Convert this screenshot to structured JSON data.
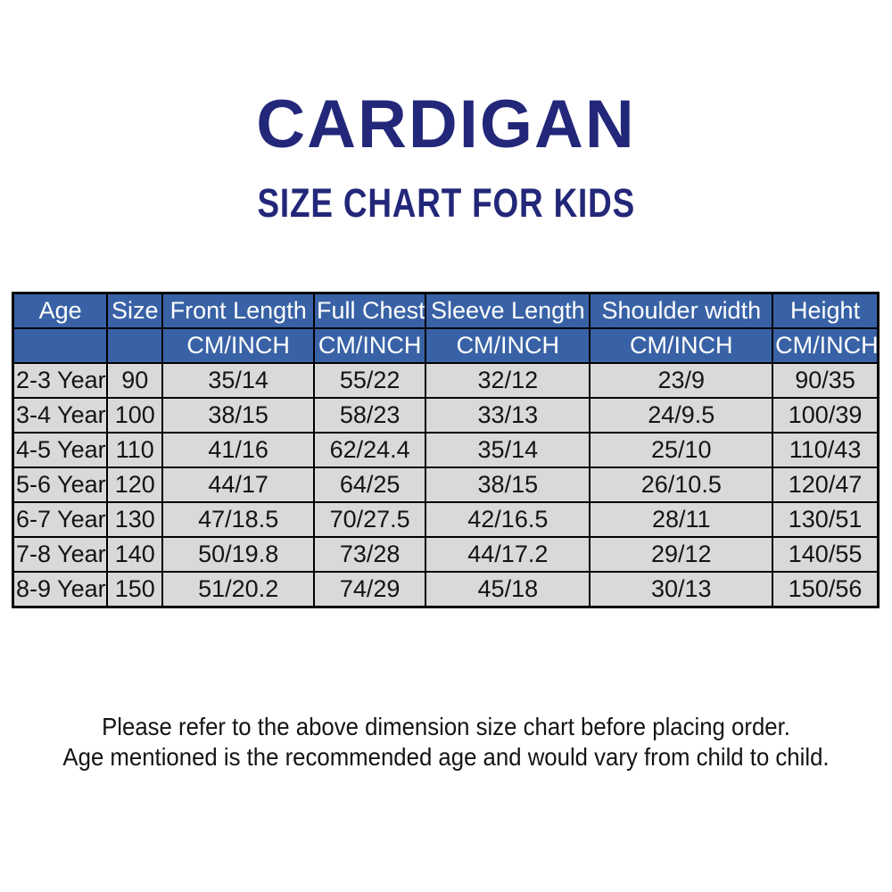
{
  "title": "CARDIGAN",
  "subtitle": "SIZE CHART FOR KIDS",
  "colors": {
    "title_navy": "#232779",
    "header_blue": "#3962A6",
    "row_gray": "#D9D9D9",
    "border_black": "#000000"
  },
  "table": {
    "columns": [
      "Age",
      "Size",
      "Front Length",
      "Full Chest",
      "Sleeve Length",
      "Shoulder width",
      "Height"
    ],
    "unit_row": [
      "",
      "",
      "CM/INCH",
      "CM/INCH",
      "CM/INCH",
      "CM/INCH",
      "CM/INCH"
    ],
    "rows": [
      [
        "2-3 Year",
        "90",
        "35/14",
        "55/22",
        "32/12",
        "23/9",
        "90/35"
      ],
      [
        "3-4 Year",
        "100",
        "38/15",
        "58/23",
        "33/13",
        "24/9.5",
        "100/39"
      ],
      [
        "4-5 Year",
        "110",
        "41/16",
        "62/24.4",
        "35/14",
        "25/10",
        "110/43"
      ],
      [
        "5-6 Year",
        "120",
        "44/17",
        "64/25",
        "38/15",
        "26/10.5",
        "120/47"
      ],
      [
        "6-7 Year",
        "130",
        "47/18.5",
        "70/27.5",
        "42/16.5",
        "28/11",
        "130/51"
      ],
      [
        "7-8 Year",
        "140",
        "50/19.8",
        "73/28",
        "44/17.2",
        "29/12",
        "140/55"
      ],
      [
        "8-9 Year",
        "150",
        "51/20.2",
        "74/29",
        "45/18",
        "30/13",
        "150/56"
      ]
    ]
  },
  "footer": {
    "line1": "Please refer to the above dimension size chart before placing order.",
    "line2": "Age mentioned is the recommended age and would vary from child to child."
  }
}
